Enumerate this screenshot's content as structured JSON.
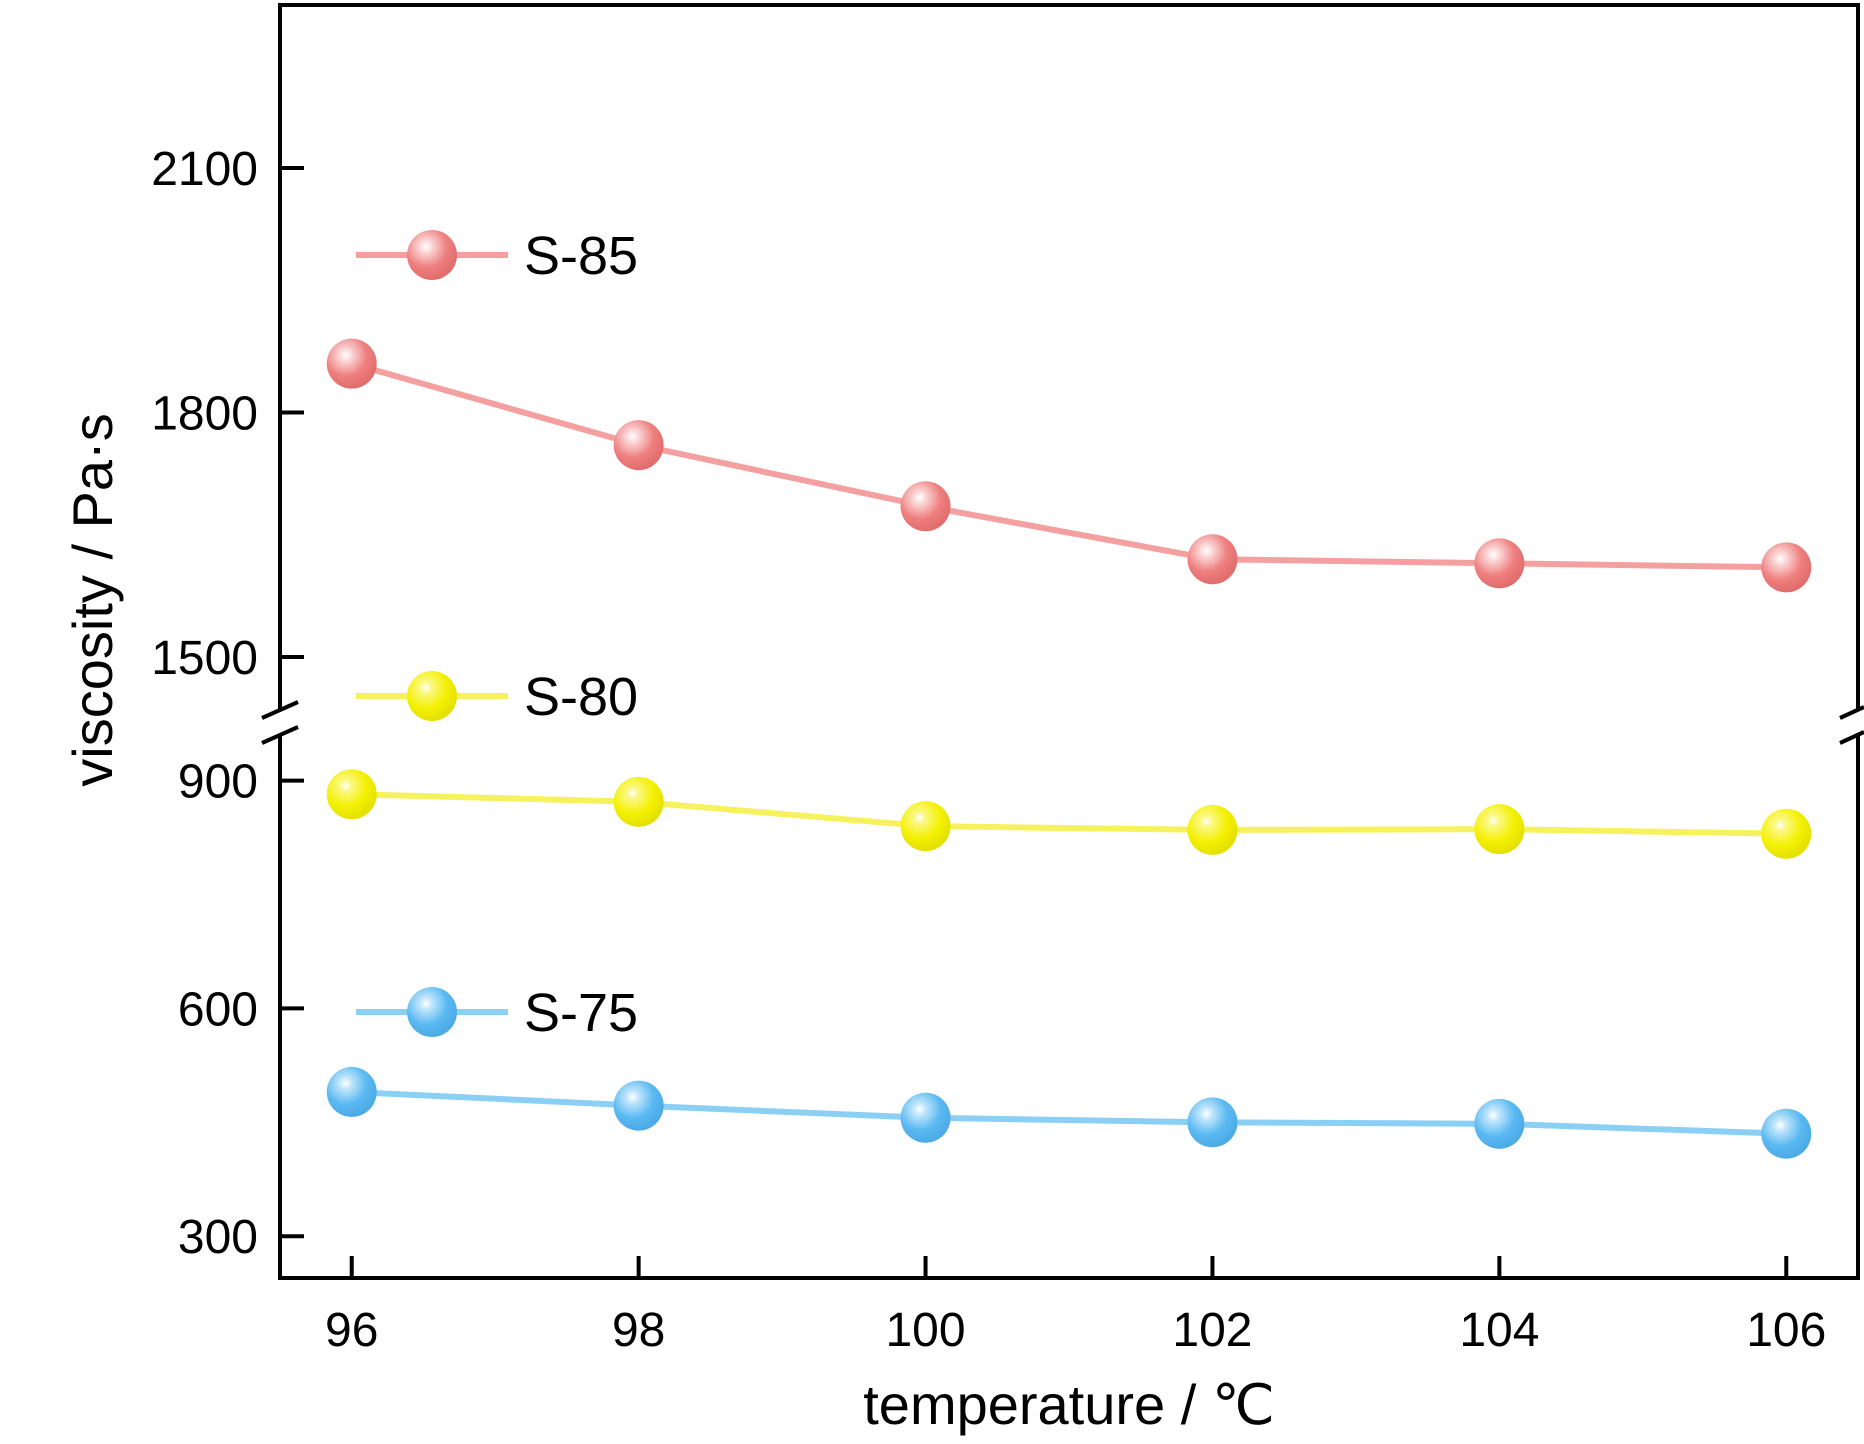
{
  "chart_data": {
    "type": "line",
    "xlabel": "temperature / ℃",
    "ylabel": "viscosity / Pa·s",
    "x": [
      96,
      98,
      100,
      102,
      104,
      106
    ],
    "xlim": [
      95.5,
      106.5
    ],
    "xticks": [
      "96",
      "98",
      "100",
      "102",
      "104",
      "106"
    ],
    "y_axis_break": true,
    "y_segments": [
      {
        "ylim": [
          1435,
          2300
        ],
        "yticks": [
          1500,
          1800,
          2100
        ]
      },
      {
        "ylim": [
          245,
          960
        ],
        "yticks": [
          300,
          600,
          900
        ]
      }
    ],
    "legend_position": "left, beside each series",
    "grid": false,
    "series": [
      {
        "name": "S-85",
        "color": "#f4a0a0",
        "marker_color": "#ef7f7f",
        "values": [
          1860,
          1760,
          1685,
          1620,
          1615,
          1610
        ]
      },
      {
        "name": "S-80",
        "color": "#f6f25e",
        "marker_color": "#f4f000",
        "values": [
          882,
          872,
          840,
          835,
          836,
          830
        ]
      },
      {
        "name": "S-75",
        "color": "#8ccff5",
        "marker_color": "#5ab9f2",
        "values": [
          490,
          472,
          456,
          450,
          448,
          435
        ]
      }
    ]
  }
}
